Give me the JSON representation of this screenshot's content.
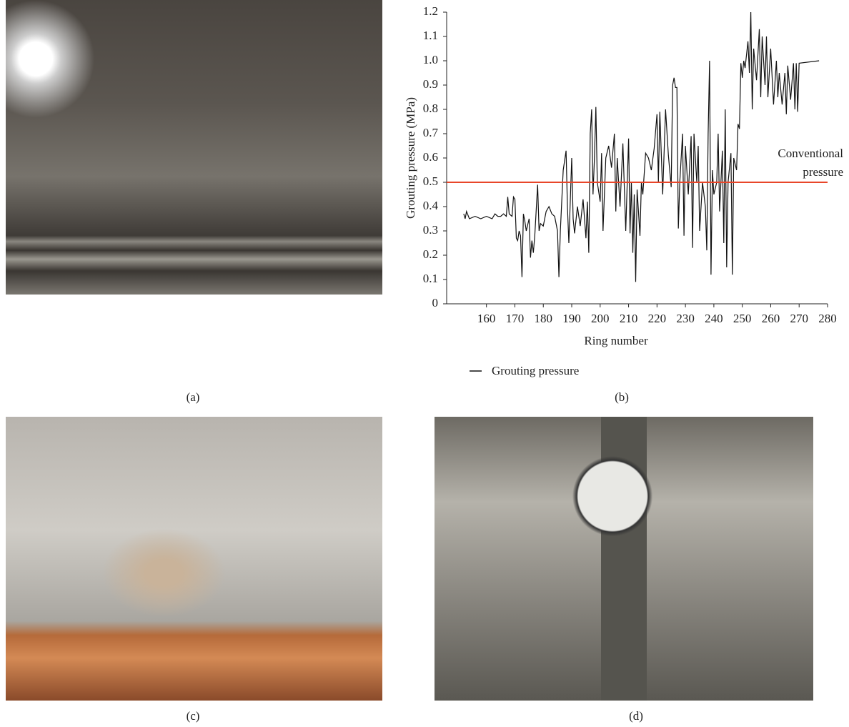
{
  "chart_data": {
    "type": "line",
    "ylabel": "Grouting pressure (MPa)",
    "xlabel": "Ring number",
    "xlim": [
      146,
      280
    ],
    "ylim": [
      0,
      1.2
    ],
    "xticks": [
      160,
      170,
      180,
      190,
      200,
      210,
      220,
      230,
      240,
      250,
      260,
      270,
      280
    ],
    "yticks": [
      0,
      0.1,
      0.2,
      0.3,
      0.4,
      0.5,
      0.6,
      0.7,
      0.8,
      0.9,
      {
        "value": 1,
        "label": "1.0"
      },
      1.1,
      1.2
    ],
    "reference_line": {
      "value": 0.5,
      "label": "Conventional pressure",
      "color": "#e8462a"
    },
    "series": [
      {
        "name": "Grouting pressure",
        "color": "#111111",
        "x": [
          152,
          152.5,
          153,
          154,
          156,
          158,
          160,
          162,
          163,
          164,
          165,
          166,
          167,
          167.5,
          168,
          169,
          169.5,
          170,
          170.5,
          171,
          171.5,
          172,
          172.5,
          173,
          173.5,
          174,
          175,
          175.5,
          176,
          176.5,
          177,
          178,
          178.5,
          179,
          180,
          181,
          182,
          183,
          184,
          185,
          185.5,
          186,
          187,
          188,
          188.5,
          189,
          190,
          190.5,
          191,
          192,
          193,
          194,
          195,
          195.5,
          196,
          196.5,
          197,
          197.5,
          198,
          198.5,
          199,
          200,
          200.5,
          201,
          202,
          203,
          204,
          205,
          205.5,
          206,
          207,
          208,
          209,
          210,
          210.5,
          211,
          211.5,
          212,
          212.5,
          213,
          214,
          214.5,
          215,
          216,
          217,
          218,
          219,
          220,
          220.5,
          221,
          222,
          223,
          224,
          225,
          225.5,
          226,
          226.5,
          227,
          227.5,
          228,
          229,
          229.5,
          230,
          231,
          232,
          232.5,
          233,
          234,
          234.5,
          235,
          236,
          237,
          237.5,
          238,
          238.5,
          239,
          239.5,
          240,
          241,
          241.5,
          242,
          243,
          243.5,
          244,
          244.5,
          245,
          246,
          246.5,
          247,
          248,
          248.5,
          249,
          249.5,
          250,
          250.5,
          251,
          252,
          252.5,
          253,
          253.5,
          254,
          255,
          256,
          256.5,
          257,
          258,
          258.5,
          259,
          260,
          261,
          262,
          262.5,
          263,
          264,
          265,
          265.5,
          266,
          267,
          268,
          268.5,
          269,
          269.5,
          270,
          277
        ],
        "values": [
          0.37,
          0.35,
          0.38,
          0.35,
          0.36,
          0.35,
          0.36,
          0.35,
          0.37,
          0.36,
          0.36,
          0.37,
          0.36,
          0.44,
          0.37,
          0.36,
          0.44,
          0.43,
          0.27,
          0.26,
          0.3,
          0.28,
          0.11,
          0.37,
          0.34,
          0.3,
          0.35,
          0.19,
          0.26,
          0.21,
          0.28,
          0.49,
          0.3,
          0.33,
          0.32,
          0.38,
          0.4,
          0.37,
          0.36,
          0.3,
          0.11,
          0.3,
          0.55,
          0.63,
          0.4,
          0.25,
          0.6,
          0.35,
          0.29,
          0.4,
          0.32,
          0.43,
          0.27,
          0.42,
          0.21,
          0.7,
          0.8,
          0.45,
          0.6,
          0.81,
          0.5,
          0.42,
          0.62,
          0.3,
          0.6,
          0.65,
          0.56,
          0.7,
          0.38,
          0.6,
          0.4,
          0.66,
          0.3,
          0.68,
          0.29,
          0.5,
          0.21,
          0.45,
          0.09,
          0.47,
          0.28,
          0.5,
          0.45,
          0.62,
          0.6,
          0.55,
          0.64,
          0.78,
          0.5,
          0.79,
          0.45,
          0.8,
          0.61,
          0.48,
          0.9,
          0.93,
          0.89,
          0.89,
          0.31,
          0.5,
          0.7,
          0.28,
          0.65,
          0.45,
          0.69,
          0.23,
          0.7,
          0.5,
          0.65,
          0.3,
          0.5,
          0.4,
          0.22,
          0.7,
          1.0,
          0.12,
          0.55,
          0.45,
          0.5,
          0.7,
          0.38,
          0.63,
          0.25,
          0.8,
          0.15,
          0.5,
          0.62,
          0.12,
          0.6,
          0.55,
          0.74,
          0.72,
          0.99,
          0.93,
          1.0,
          0.97,
          1.08,
          0.95,
          1.2,
          0.8,
          1.05,
          0.92,
          1.13,
          0.85,
          1.1,
          0.9,
          1.1,
          0.85,
          1.05,
          0.82,
          1.0,
          0.85,
          0.95,
          0.82,
          0.95,
          0.78,
          0.98,
          0.84,
          0.99,
          0.8,
          0.99,
          0.79,
          0.99,
          1.0
        ]
      }
    ]
  },
  "captions": [
    "(a)",
    "(b)",
    "(c)",
    "(d)"
  ]
}
